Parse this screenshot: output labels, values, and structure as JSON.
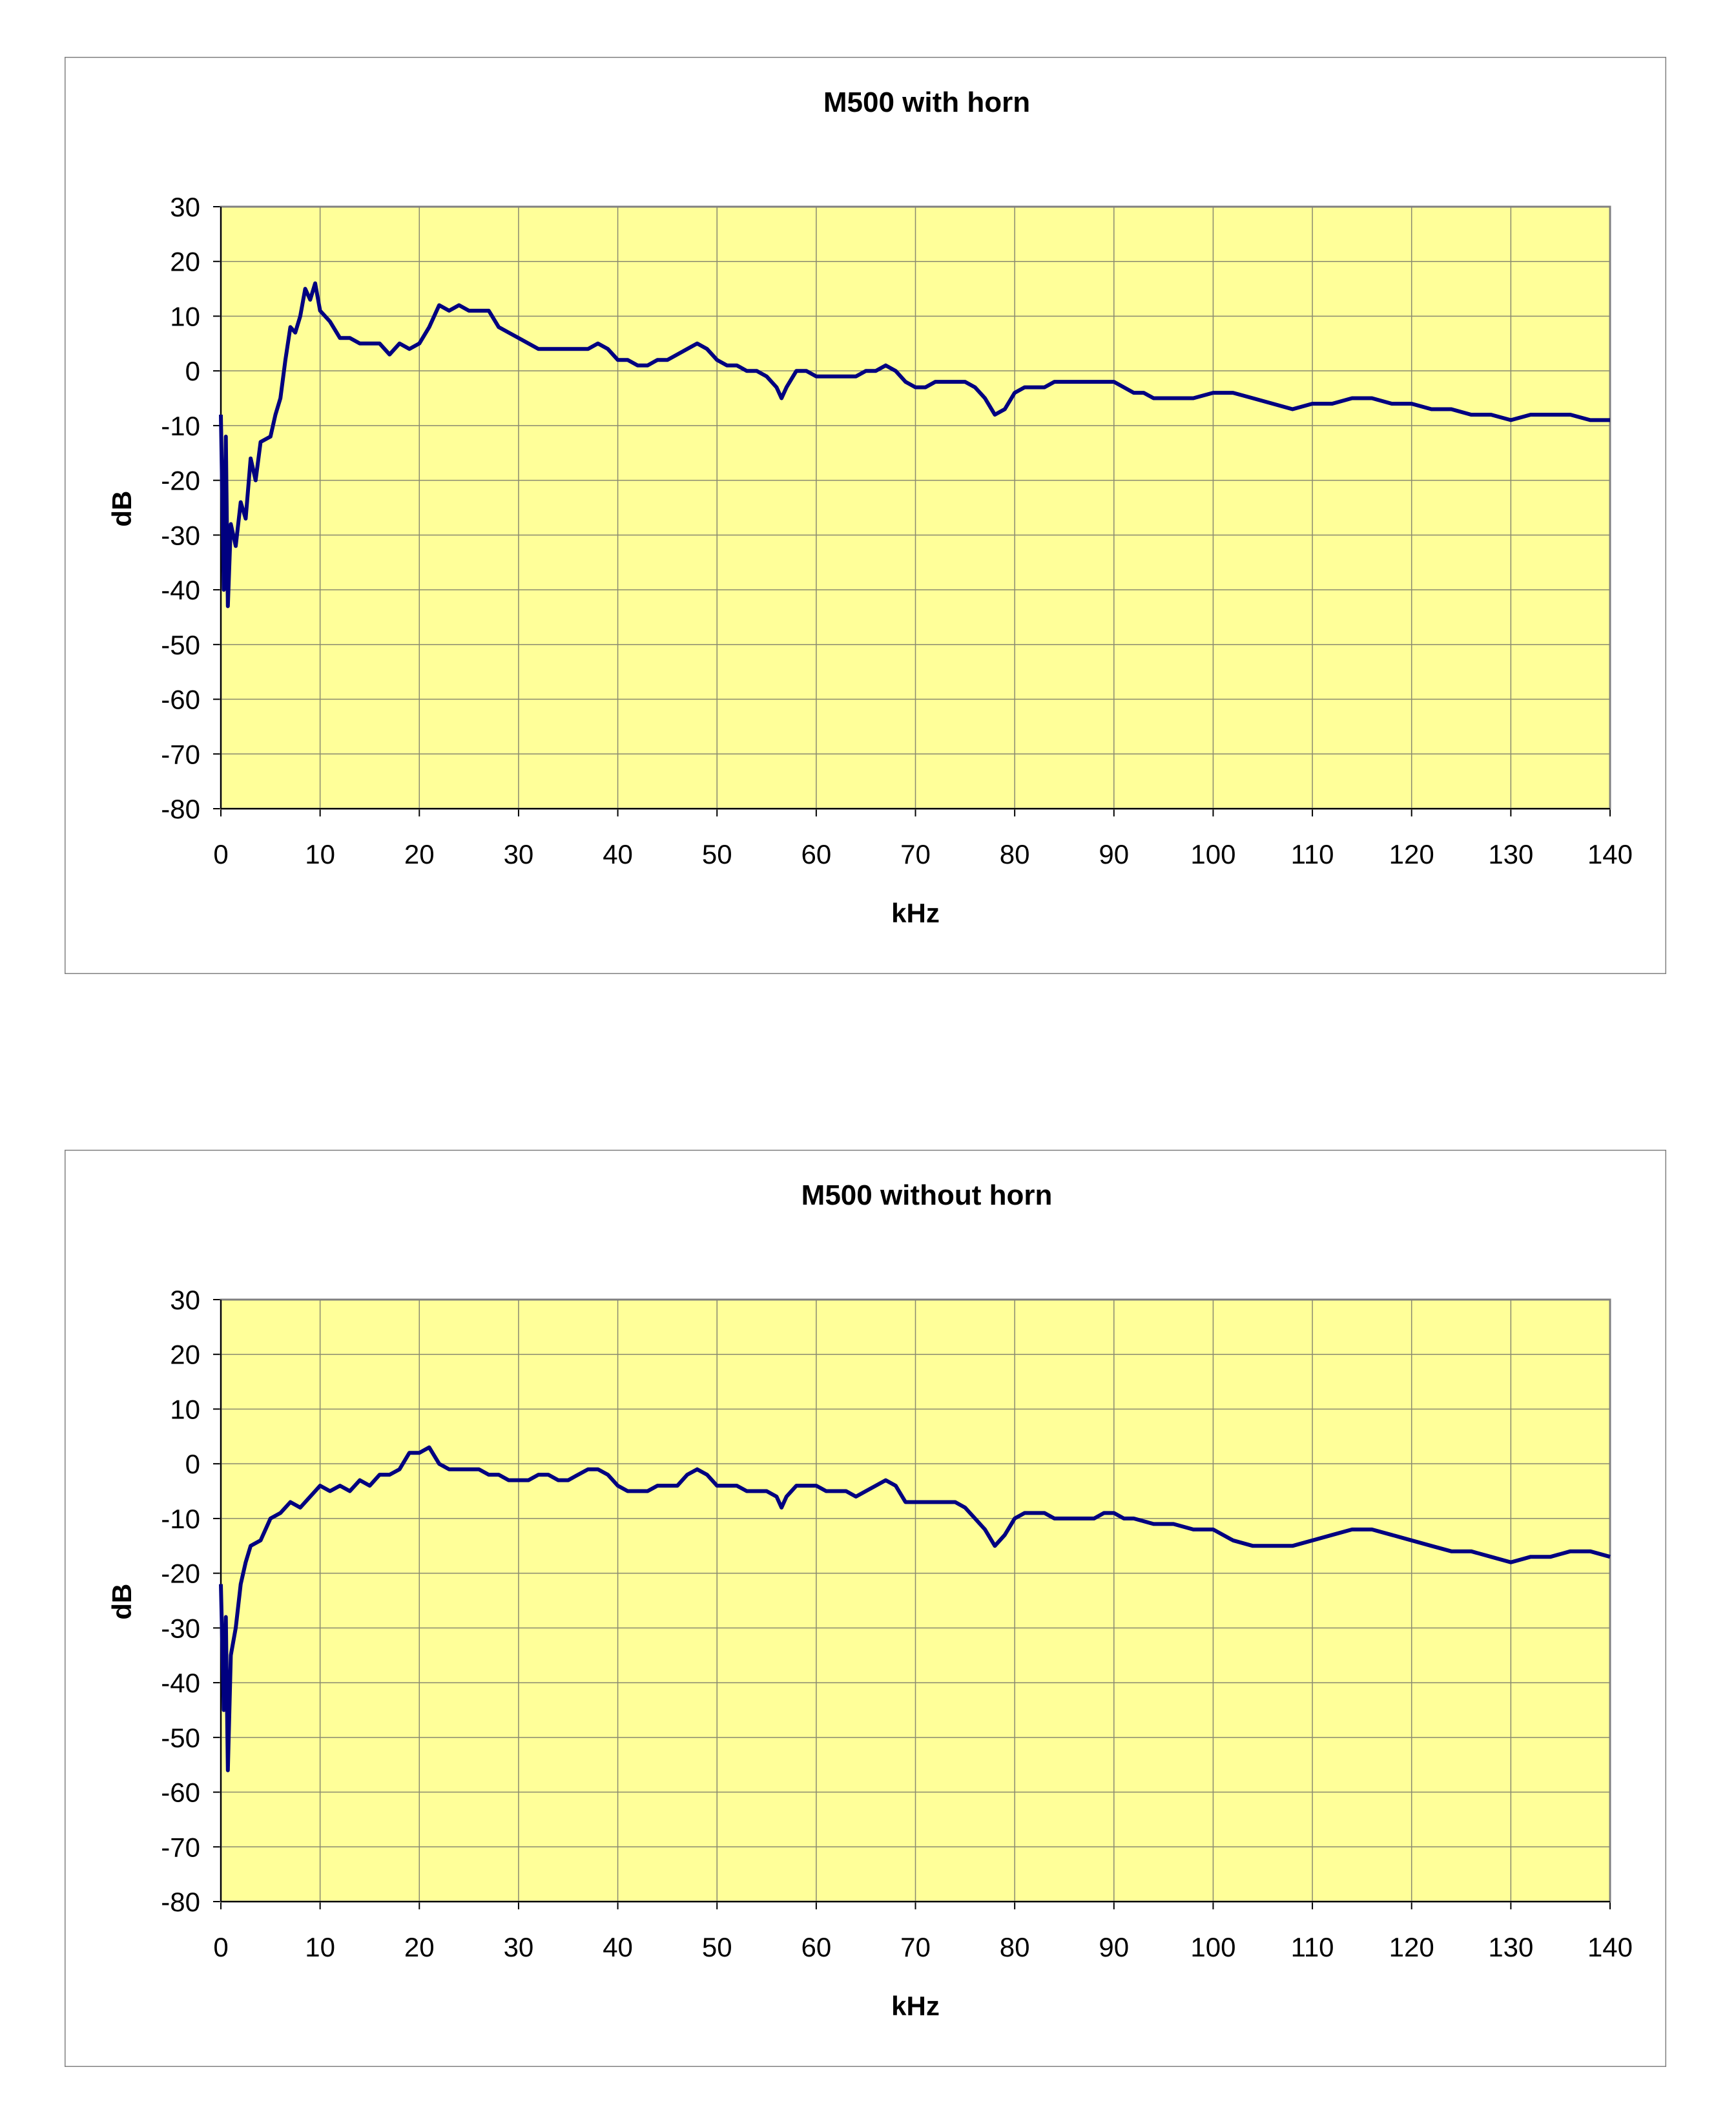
{
  "chart_data": [
    {
      "type": "line",
      "title": "M500 with horn",
      "xlabel": "kHz",
      "ylabel": "dB",
      "xlim": [
        0,
        140
      ],
      "ylim": [
        -80,
        30
      ],
      "xticks": [
        "0",
        "10",
        "20",
        "30",
        "40",
        "50",
        "60",
        "70",
        "80",
        "90",
        "100",
        "110",
        "120",
        "130",
        "140"
      ],
      "yticks": [
        "30",
        "20",
        "10",
        "0",
        "-10",
        "-20",
        "-30",
        "-40",
        "-50",
        "-60",
        "-70",
        "-80"
      ],
      "grid": true,
      "plot_background": "#FFFF99",
      "line_color": "#000080",
      "points": [
        [
          0,
          -8
        ],
        [
          0.3,
          -40
        ],
        [
          0.5,
          -12
        ],
        [
          0.7,
          -43
        ],
        [
          1,
          -28
        ],
        [
          1.5,
          -32
        ],
        [
          2,
          -24
        ],
        [
          2.5,
          -27
        ],
        [
          3,
          -16
        ],
        [
          3.5,
          -20
        ],
        [
          4,
          -13
        ],
        [
          5,
          -12
        ],
        [
          5.5,
          -8
        ],
        [
          6,
          -5
        ],
        [
          6.5,
          2
        ],
        [
          7,
          8
        ],
        [
          7.5,
          7
        ],
        [
          8,
          10
        ],
        [
          8.5,
          15
        ],
        [
          9,
          13
        ],
        [
          9.5,
          16
        ],
        [
          10,
          11
        ],
        [
          11,
          9
        ],
        [
          12,
          6
        ],
        [
          13,
          6
        ],
        [
          14,
          5
        ],
        [
          15,
          5
        ],
        [
          16,
          5
        ],
        [
          17,
          3
        ],
        [
          18,
          5
        ],
        [
          19,
          4
        ],
        [
          20,
          5
        ],
        [
          21,
          8
        ],
        [
          22,
          12
        ],
        [
          23,
          11
        ],
        [
          24,
          12
        ],
        [
          25,
          11
        ],
        [
          26,
          11
        ],
        [
          27,
          11
        ],
        [
          28,
          8
        ],
        [
          29,
          7
        ],
        [
          30,
          6
        ],
        [
          31,
          5
        ],
        [
          32,
          4
        ],
        [
          33,
          4
        ],
        [
          34,
          4
        ],
        [
          35,
          4
        ],
        [
          36,
          4
        ],
        [
          37,
          4
        ],
        [
          38,
          5
        ],
        [
          39,
          4
        ],
        [
          40,
          2
        ],
        [
          41,
          2
        ],
        [
          42,
          1
        ],
        [
          43,
          1
        ],
        [
          44,
          2
        ],
        [
          45,
          2
        ],
        [
          46,
          3
        ],
        [
          47,
          4
        ],
        [
          48,
          5
        ],
        [
          49,
          4
        ],
        [
          50,
          2
        ],
        [
          51,
          1
        ],
        [
          52,
          1
        ],
        [
          53,
          0
        ],
        [
          54,
          0
        ],
        [
          55,
          -1
        ],
        [
          56,
          -3
        ],
        [
          56.5,
          -5
        ],
        [
          57,
          -3
        ],
        [
          58,
          0
        ],
        [
          59,
          0
        ],
        [
          60,
          -1
        ],
        [
          61,
          -1
        ],
        [
          62,
          -1
        ],
        [
          63,
          -1
        ],
        [
          64,
          -1
        ],
        [
          65,
          0
        ],
        [
          66,
          0
        ],
        [
          67,
          1
        ],
        [
          68,
          0
        ],
        [
          69,
          -2
        ],
        [
          70,
          -3
        ],
        [
          71,
          -3
        ],
        [
          72,
          -2
        ],
        [
          73,
          -2
        ],
        [
          74,
          -2
        ],
        [
          75,
          -2
        ],
        [
          76,
          -3
        ],
        [
          77,
          -5
        ],
        [
          78,
          -8
        ],
        [
          79,
          -7
        ],
        [
          80,
          -4
        ],
        [
          81,
          -3
        ],
        [
          82,
          -3
        ],
        [
          83,
          -3
        ],
        [
          84,
          -2
        ],
        [
          85,
          -2
        ],
        [
          86,
          -2
        ],
        [
          87,
          -2
        ],
        [
          88,
          -2
        ],
        [
          89,
          -2
        ],
        [
          90,
          -2
        ],
        [
          91,
          -3
        ],
        [
          92,
          -4
        ],
        [
          93,
          -4
        ],
        [
          94,
          -5
        ],
        [
          95,
          -5
        ],
        [
          96,
          -5
        ],
        [
          97,
          -5
        ],
        [
          98,
          -5
        ],
        [
          100,
          -4
        ],
        [
          102,
          -4
        ],
        [
          104,
          -5
        ],
        [
          106,
          -6
        ],
        [
          108,
          -7
        ],
        [
          110,
          -6
        ],
        [
          112,
          -6
        ],
        [
          114,
          -5
        ],
        [
          116,
          -5
        ],
        [
          118,
          -6
        ],
        [
          120,
          -6
        ],
        [
          122,
          -7
        ],
        [
          124,
          -7
        ],
        [
          126,
          -8
        ],
        [
          128,
          -8
        ],
        [
          130,
          -9
        ],
        [
          132,
          -8
        ],
        [
          134,
          -8
        ],
        [
          136,
          -8
        ],
        [
          138,
          -9
        ],
        [
          140,
          -9
        ]
      ]
    },
    {
      "type": "line",
      "title": "M500 without horn",
      "xlabel": "kHz",
      "ylabel": "dB",
      "xlim": [
        0,
        140
      ],
      "ylim": [
        -80,
        30
      ],
      "xticks": [
        "0",
        "10",
        "20",
        "30",
        "40",
        "50",
        "60",
        "70",
        "80",
        "90",
        "100",
        "110",
        "120",
        "130",
        "140"
      ],
      "yticks": [
        "30",
        "20",
        "10",
        "0",
        "-10",
        "-20",
        "-30",
        "-40",
        "-50",
        "-60",
        "-70",
        "-80"
      ],
      "grid": true,
      "plot_background": "#FFFF99",
      "line_color": "#000080",
      "points": [
        [
          0,
          -22
        ],
        [
          0.3,
          -45
        ],
        [
          0.5,
          -28
        ],
        [
          0.7,
          -56
        ],
        [
          1,
          -35
        ],
        [
          1.5,
          -30
        ],
        [
          2,
          -22
        ],
        [
          2.5,
          -18
        ],
        [
          3,
          -15
        ],
        [
          4,
          -14
        ],
        [
          5,
          -10
        ],
        [
          6,
          -9
        ],
        [
          7,
          -7
        ],
        [
          8,
          -8
        ],
        [
          9,
          -6
        ],
        [
          10,
          -4
        ],
        [
          11,
          -5
        ],
        [
          12,
          -4
        ],
        [
          13,
          -5
        ],
        [
          14,
          -3
        ],
        [
          15,
          -4
        ],
        [
          16,
          -2
        ],
        [
          17,
          -2
        ],
        [
          18,
          -1
        ],
        [
          19,
          2
        ],
        [
          20,
          2
        ],
        [
          21,
          3
        ],
        [
          22,
          0
        ],
        [
          23,
          -1
        ],
        [
          24,
          -1
        ],
        [
          25,
          -1
        ],
        [
          26,
          -1
        ],
        [
          27,
          -2
        ],
        [
          28,
          -2
        ],
        [
          29,
          -3
        ],
        [
          30,
          -3
        ],
        [
          31,
          -3
        ],
        [
          32,
          -2
        ],
        [
          33,
          -2
        ],
        [
          34,
          -3
        ],
        [
          35,
          -3
        ],
        [
          36,
          -2
        ],
        [
          37,
          -1
        ],
        [
          38,
          -1
        ],
        [
          39,
          -2
        ],
        [
          40,
          -4
        ],
        [
          41,
          -5
        ],
        [
          42,
          -5
        ],
        [
          43,
          -5
        ],
        [
          44,
          -4
        ],
        [
          45,
          -4
        ],
        [
          46,
          -4
        ],
        [
          47,
          -2
        ],
        [
          48,
          -1
        ],
        [
          49,
          -2
        ],
        [
          50,
          -4
        ],
        [
          51,
          -4
        ],
        [
          52,
          -4
        ],
        [
          53,
          -5
        ],
        [
          54,
          -5
        ],
        [
          55,
          -5
        ],
        [
          56,
          -6
        ],
        [
          56.5,
          -8
        ],
        [
          57,
          -6
        ],
        [
          58,
          -4
        ],
        [
          59,
          -4
        ],
        [
          60,
          -4
        ],
        [
          61,
          -5
        ],
        [
          62,
          -5
        ],
        [
          63,
          -5
        ],
        [
          64,
          -6
        ],
        [
          65,
          -5
        ],
        [
          66,
          -4
        ],
        [
          67,
          -3
        ],
        [
          68,
          -4
        ],
        [
          69,
          -7
        ],
        [
          70,
          -7
        ],
        [
          71,
          -7
        ],
        [
          72,
          -7
        ],
        [
          73,
          -7
        ],
        [
          74,
          -7
        ],
        [
          75,
          -8
        ],
        [
          76,
          -10
        ],
        [
          77,
          -12
        ],
        [
          78,
          -15
        ],
        [
          79,
          -13
        ],
        [
          80,
          -10
        ],
        [
          81,
          -9
        ],
        [
          82,
          -9
        ],
        [
          83,
          -9
        ],
        [
          84,
          -10
        ],
        [
          85,
          -10
        ],
        [
          86,
          -10
        ],
        [
          87,
          -10
        ],
        [
          88,
          -10
        ],
        [
          89,
          -9
        ],
        [
          90,
          -9
        ],
        [
          91,
          -10
        ],
        [
          92,
          -10
        ],
        [
          94,
          -11
        ],
        [
          96,
          -11
        ],
        [
          98,
          -12
        ],
        [
          100,
          -12
        ],
        [
          102,
          -14
        ],
        [
          104,
          -15
        ],
        [
          106,
          -15
        ],
        [
          108,
          -15
        ],
        [
          110,
          -14
        ],
        [
          112,
          -13
        ],
        [
          114,
          -12
        ],
        [
          116,
          -12
        ],
        [
          118,
          -13
        ],
        [
          120,
          -14
        ],
        [
          122,
          -15
        ],
        [
          124,
          -16
        ],
        [
          126,
          -16
        ],
        [
          128,
          -17
        ],
        [
          130,
          -18
        ],
        [
          132,
          -17
        ],
        [
          134,
          -17
        ],
        [
          136,
          -16
        ],
        [
          138,
          -16
        ],
        [
          140,
          -17
        ]
      ]
    }
  ]
}
